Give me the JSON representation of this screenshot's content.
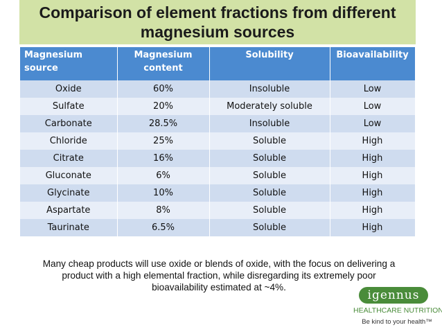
{
  "title": "Comparison of element fractions from different magnesium sources",
  "table": {
    "headers": [
      "Magnesium source",
      "Magnesium content",
      "Solubility",
      "Bioavailability"
    ],
    "rows": [
      [
        "Oxide",
        "60%",
        "Insoluble",
        "Low"
      ],
      [
        "Sulfate",
        "20%",
        "Moderately soluble",
        "Low"
      ],
      [
        "Carbonate",
        "28.5%",
        "Insoluble",
        "Low"
      ],
      [
        "Chloride",
        "25%",
        "Soluble",
        "High"
      ],
      [
        "Citrate",
        "16%",
        "Soluble",
        "High"
      ],
      [
        "Gluconate",
        "6%",
        "Soluble",
        "High"
      ],
      [
        "Glycinate",
        "10%",
        "Soluble",
        "High"
      ],
      [
        "Aspartate",
        "8%",
        "Soluble",
        "High"
      ],
      [
        "Taurinate",
        "6.5%",
        "Soluble",
        "High"
      ]
    ]
  },
  "note": "Many cheap products will use oxide or blends of oxide, with the focus on delivering a product with a high elemental fraction, while disregarding its extremely poor bioavailability estimated at ~4%.",
  "logo": {
    "name": "igennus",
    "subtitle": "HEALTHCARE NUTRITION",
    "tagline": "Be kind to your health™"
  },
  "colors": {
    "title_bg": "#d2e2a6",
    "header_bg": "#4b8ad0",
    "row_odd": "#cfdcef",
    "row_even": "#e8eef8",
    "brand_green": "#4a8c3a"
  }
}
